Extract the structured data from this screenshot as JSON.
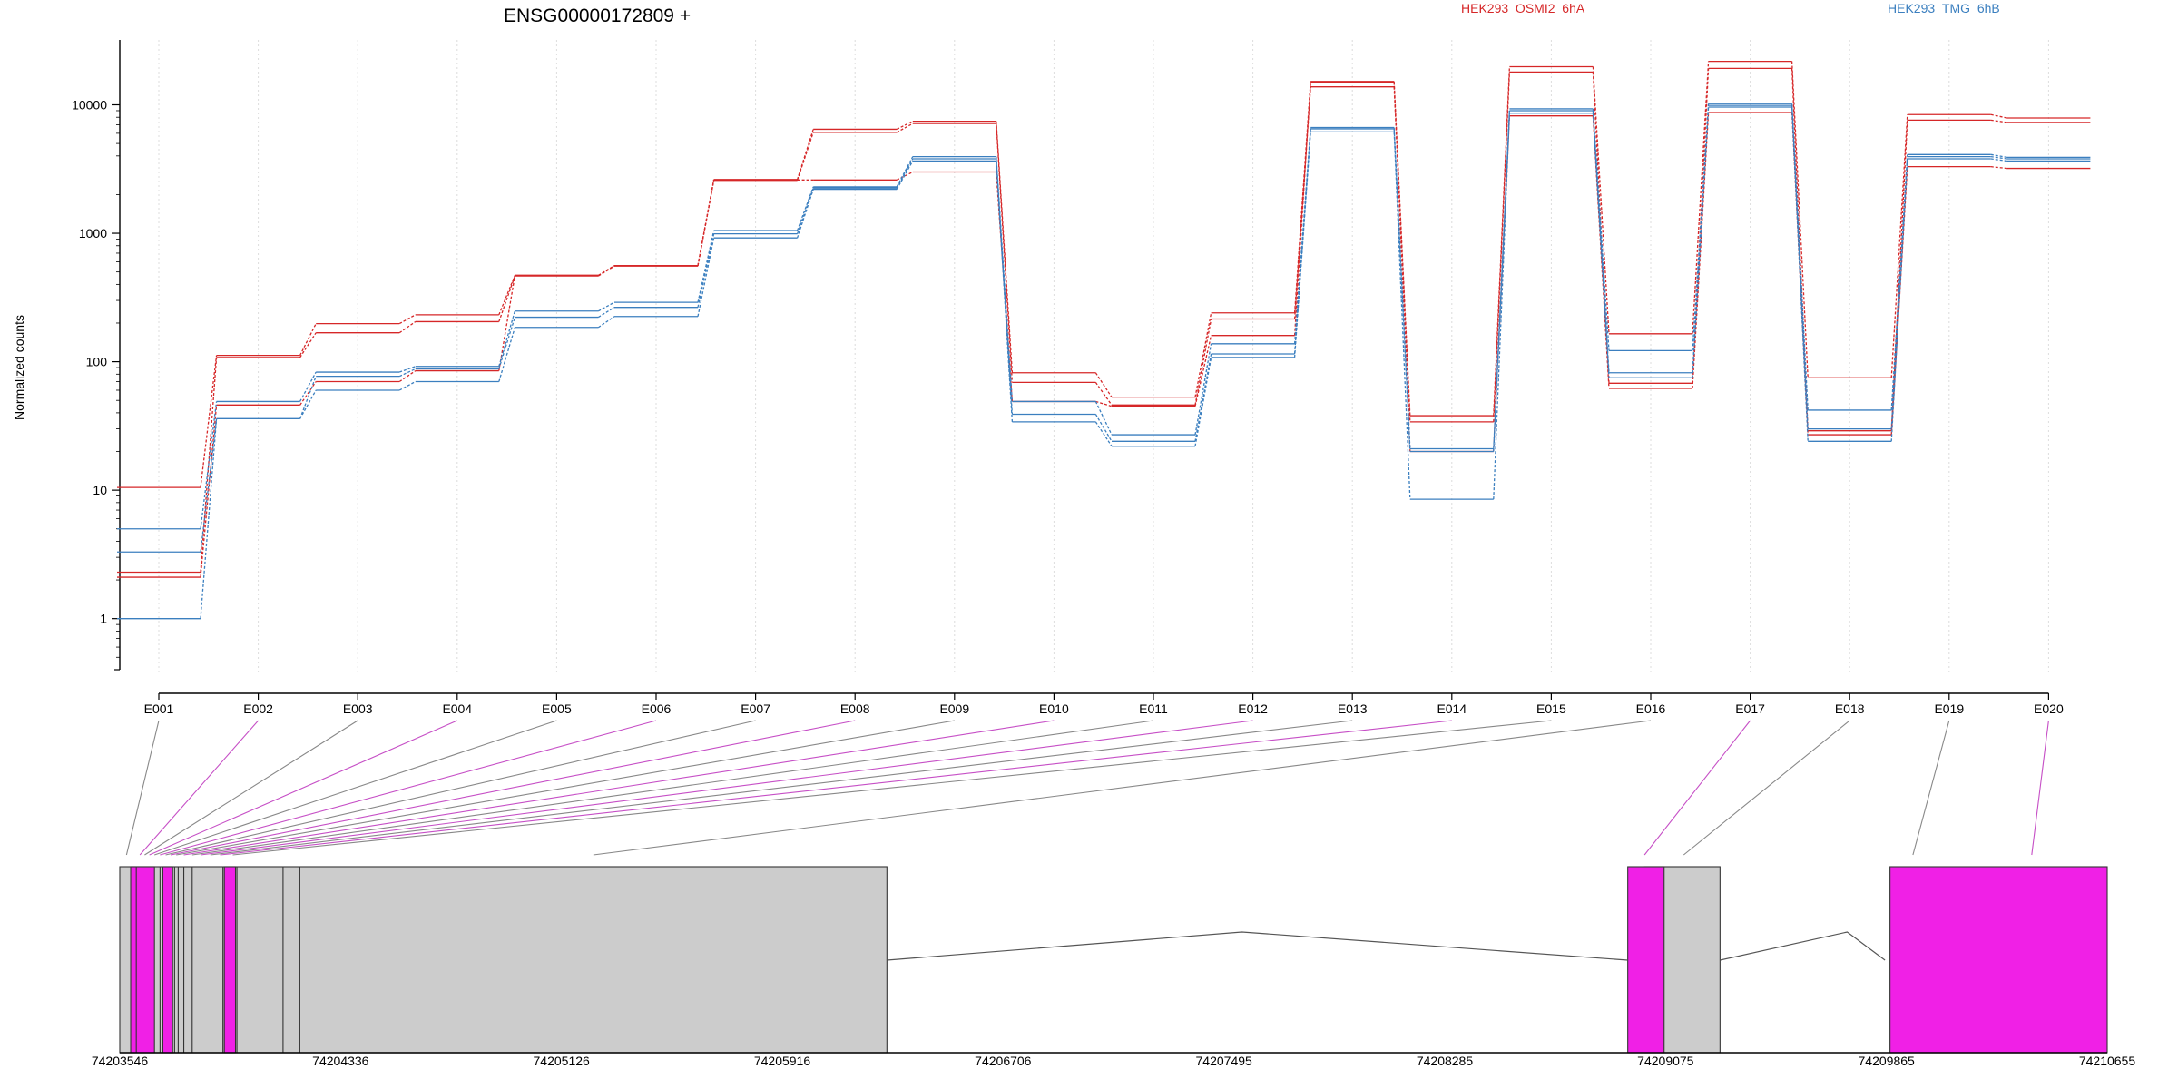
{
  "chart_data": {
    "type": "line",
    "title": "ENSG00000172809 +",
    "xlabel": "",
    "ylabel": "Normalized counts",
    "yscale": "log",
    "ylim": [
      0.4,
      32000
    ],
    "grid": "vertical dotted lines at exon centers",
    "y_ticks": [
      {
        "value": 1,
        "label": "1"
      },
      {
        "value": 10,
        "label": "10"
      },
      {
        "value": 100,
        "label": "100"
      },
      {
        "value": 1000,
        "label": "1000"
      },
      {
        "value": 10000,
        "label": "10000"
      }
    ],
    "categories": [
      "E001",
      "E002",
      "E003",
      "E004",
      "E005",
      "E006",
      "E007",
      "E008",
      "E009",
      "E010",
      "E011",
      "E012",
      "E013",
      "E014",
      "E015",
      "E016",
      "E017",
      "E018",
      "E019",
      "E020"
    ],
    "legend_labels": [
      {
        "text": "HEK293_OSMI2_6hA",
        "color": "#d62728"
      },
      {
        "text": "HEK293_TMG_6hB",
        "color": "#3b7fbf"
      }
    ],
    "series": [
      {
        "color": "#d62728",
        "values": [
          10.5,
          112,
          198,
          232,
          470,
          560,
          2620,
          6450,
          7450,
          82,
          53,
          240,
          15200,
          38,
          19800,
          165,
          21800,
          75,
          8400,
          7900
        ]
      },
      {
        "color": "#d62728",
        "values": [
          2.3,
          108,
          168,
          205,
          465,
          555,
          2580,
          6100,
          7150,
          69,
          46,
          215,
          13800,
          34,
          18000,
          68,
          19200,
          29,
          7600,
          7300
        ]
      },
      {
        "color": "#d62728",
        "values": [
          2.1,
          46,
          70,
          85,
          470,
          560,
          2600,
          2600,
          3000,
          49,
          45,
          160,
          15000,
          20,
          8200,
          62,
          8700,
          27,
          3300,
          3200
        ]
      },
      {
        "color": "#3b7fbf",
        "values": [
          5.0,
          49,
          83,
          92,
          248,
          290,
          1050,
          2300,
          3950,
          49,
          27,
          138,
          6650,
          21,
          9300,
          122,
          10200,
          42,
          4100,
          3900
        ]
      },
      {
        "color": "#3b7fbf",
        "values": [
          3.3,
          36,
          77,
          88,
          222,
          265,
          990,
          2250,
          3800,
          39,
          24,
          115,
          6500,
          20,
          9000,
          82,
          9900,
          30,
          3950,
          3800
        ]
      },
      {
        "color": "#3b7fbf",
        "values": [
          1.0,
          36,
          60,
          70,
          185,
          225,
          920,
          2200,
          3650,
          34,
          22,
          108,
          6150,
          8.5,
          8600,
          75,
          9600,
          24,
          3800,
          3650
        ]
      }
    ],
    "gene_model": {
      "coordinate_labels": [
        "74203546",
        "74204336",
        "74205126",
        "74205916",
        "74206706",
        "74207495",
        "74208285",
        "74209075",
        "74209865",
        "74210655"
      ],
      "range": [
        74203546,
        74210655
      ],
      "exon_blocks": [
        {
          "start": 74203546,
          "end": 74206290,
          "color": "#cccccc"
        },
        {
          "start": 74209000,
          "end": 74209270,
          "color": "#cccccc"
        },
        {
          "start": 74203585,
          "end": 74203670,
          "color": "#f020e6"
        },
        {
          "start": 74203700,
          "end": 74203735,
          "color": "#f020e6"
        },
        {
          "start": 74203920,
          "end": 74203960,
          "color": "#f020e6"
        },
        {
          "start": 74208940,
          "end": 74209070,
          "color": "#f020e6"
        },
        {
          "start": 74209878,
          "end": 74210655,
          "color": "#f020e6"
        }
      ],
      "exon_dividers": [
        74203605,
        74203690,
        74203742,
        74203755,
        74203775,
        74203805,
        74203915,
        74203965,
        74204130,
        74204190
      ],
      "introns": [
        {
          "start": 74206290,
          "end": 74208940,
          "peak": 74207560
        },
        {
          "start": 74209270,
          "end": 74209860,
          "peak": 74209725
        }
      ],
      "connectors": [
        {
          "coord": 74203570,
          "color": "#888888"
        },
        {
          "coord": 74203618,
          "color": "#c64fc6"
        },
        {
          "coord": 74203635,
          "color": "#888888"
        },
        {
          "coord": 74203652,
          "color": "#c64fc6"
        },
        {
          "coord": 74203670,
          "color": "#888888"
        },
        {
          "coord": 74203690,
          "color": "#c64fc6"
        },
        {
          "coord": 74203710,
          "color": "#888888"
        },
        {
          "coord": 74203728,
          "color": "#c64fc6"
        },
        {
          "coord": 74203748,
          "color": "#888888"
        },
        {
          "coord": 74203775,
          "color": "#c64fc6"
        },
        {
          "coord": 74203805,
          "color": "#888888"
        },
        {
          "coord": 74203835,
          "color": "#c64fc6"
        },
        {
          "coord": 74203870,
          "color": "#888888"
        },
        {
          "coord": 74203905,
          "color": "#c64fc6"
        },
        {
          "coord": 74203950,
          "color": "#888888"
        },
        {
          "coord": 74205240,
          "color": "#888888"
        },
        {
          "coord": 74209000,
          "color": "#c64fc6"
        },
        {
          "coord": 74209140,
          "color": "#888888"
        },
        {
          "coord": 74209960,
          "color": "#888888"
        },
        {
          "coord": 74210385,
          "color": "#c64fc6"
        }
      ]
    }
  }
}
